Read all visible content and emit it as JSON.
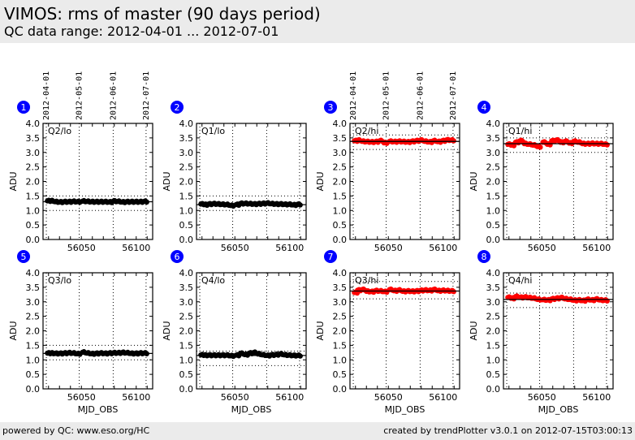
{
  "header": {
    "title": "VIMOS: rms of master (90 days period)",
    "subtitle": "QC data range: 2012-04-01 ... 2012-07-01"
  },
  "footer": {
    "left": "powered by QC: www.eso.org/HC",
    "right": "created by trendPlotter v3.0.1 on 2012-07-15T03:00:13"
  },
  "colors": {
    "lo": "#000000",
    "hi": "#ff0000",
    "badge": "#0000ff",
    "header_bg": "#ebebeb"
  },
  "chart_data": [
    {
      "type": "scatter",
      "panel": "1",
      "label": "Q2/lo",
      "color": "#000000",
      "xlabel": "",
      "ylabel": "ADU",
      "xlim": [
        56015,
        56115
      ],
      "ylim": [
        0,
        4
      ],
      "xticks": [
        "56050",
        "56100"
      ],
      "yticks": [
        "0.0",
        "0.5",
        "1.0",
        "1.5",
        "2.0",
        "2.5",
        "3.0",
        "3.5",
        "4.0"
      ],
      "top_dates": [
        "2012-04-01",
        "2012-05-01",
        "2012-06-01",
        "2012-07-01"
      ],
      "date_mjd": [
        56018,
        56048,
        56079,
        56109
      ],
      "mean": 1.3,
      "lower": 1.0,
      "upper": 1.5,
      "x": [
        56019,
        56022,
        56026,
        56030,
        56034,
        56038,
        56042,
        56046,
        56051,
        56055,
        56059,
        56063,
        56067,
        56071,
        56075,
        56079,
        56083,
        56087,
        56091,
        56095,
        56099,
        56103,
        56107
      ],
      "y": [
        1.33,
        1.33,
        1.3,
        1.29,
        1.3,
        1.3,
        1.31,
        1.3,
        1.32,
        1.31,
        1.3,
        1.3,
        1.3,
        1.3,
        1.29,
        1.32,
        1.31,
        1.29,
        1.3,
        1.3,
        1.3,
        1.3,
        1.31
      ]
    },
    {
      "type": "scatter",
      "panel": "2",
      "label": "Q1/lo",
      "color": "#000000",
      "xlabel": "",
      "ylabel": "ADU",
      "xlim": [
        56015,
        56115
      ],
      "ylim": [
        0,
        4
      ],
      "xticks": [
        "56050",
        "56100"
      ],
      "yticks": [
        "0.0",
        "0.5",
        "1.0",
        "1.5",
        "2.0",
        "2.5",
        "3.0",
        "3.5",
        "4.0"
      ],
      "top_dates": [],
      "date_mjd": [
        56018,
        56048,
        56079,
        56109
      ],
      "mean": 1.2,
      "lower": 1.0,
      "upper": 1.5,
      "x": [
        56019,
        56022,
        56026,
        56030,
        56034,
        56038,
        56042,
        56046,
        56051,
        56055,
        56059,
        56063,
        56067,
        56071,
        56075,
        56079,
        56083,
        56087,
        56091,
        56095,
        56099,
        56103,
        56107
      ],
      "y": [
        1.22,
        1.2,
        1.22,
        1.23,
        1.22,
        1.21,
        1.2,
        1.17,
        1.2,
        1.24,
        1.24,
        1.23,
        1.22,
        1.23,
        1.24,
        1.25,
        1.23,
        1.22,
        1.22,
        1.21,
        1.21,
        1.19,
        1.21
      ]
    },
    {
      "type": "scatter",
      "panel": "3",
      "label": "Q2/hi",
      "color": "#ff0000",
      "xlabel": "",
      "ylabel": "ADU",
      "xlim": [
        56015,
        56115
      ],
      "ylim": [
        0,
        4
      ],
      "xticks": [
        "56050",
        "56100"
      ],
      "yticks": [
        "0.0",
        "0.5",
        "1.0",
        "1.5",
        "2.0",
        "2.5",
        "3.0",
        "3.5",
        "4.0"
      ],
      "top_dates": [
        "2012-04-01",
        "2012-05-01",
        "2012-06-01",
        "2012-07-01"
      ],
      "date_mjd": [
        56018,
        56048,
        56079,
        56109
      ],
      "mean": 3.38,
      "lower": 3.1,
      "upper": 3.6,
      "x": [
        56019,
        56022,
        56026,
        56030,
        56034,
        56038,
        56042,
        56046,
        56051,
        56055,
        56059,
        56063,
        56067,
        56071,
        56075,
        56079,
        56083,
        56087,
        56091,
        56095,
        56099,
        56103,
        56107
      ],
      "y": [
        3.4,
        3.42,
        3.38,
        3.37,
        3.36,
        3.37,
        3.4,
        3.33,
        3.38,
        3.37,
        3.38,
        3.37,
        3.36,
        3.38,
        3.4,
        3.42,
        3.38,
        3.36,
        3.4,
        3.37,
        3.4,
        3.43,
        3.42
      ]
    },
    {
      "type": "scatter",
      "panel": "4",
      "label": "Q1/hi",
      "color": "#ff0000",
      "xlabel": "",
      "ylabel": "ADU",
      "xlim": [
        56015,
        56115
      ],
      "ylim": [
        0,
        4
      ],
      "xticks": [
        "56050",
        "56100"
      ],
      "yticks": [
        "0.0",
        "0.5",
        "1.0",
        "1.5",
        "2.0",
        "2.5",
        "3.0",
        "3.5",
        "4.0"
      ],
      "top_dates": [],
      "date_mjd": [
        56018,
        56048,
        56079,
        56109
      ],
      "mean": 3.3,
      "lower": 3.0,
      "upper": 3.5,
      "x": [
        56019,
        56022,
        56026,
        56030,
        56034,
        56038,
        56042,
        56046,
        56051,
        56055,
        56059,
        56063,
        56067,
        56071,
        56075,
        56079,
        56083,
        56087,
        56091,
        56095,
        56099,
        56103,
        56107
      ],
      "y": [
        3.28,
        3.25,
        3.35,
        3.4,
        3.3,
        3.28,
        3.25,
        3.2,
        3.35,
        3.28,
        3.4,
        3.42,
        3.35,
        3.38,
        3.32,
        3.38,
        3.35,
        3.3,
        3.3,
        3.31,
        3.3,
        3.3,
        3.28
      ]
    },
    {
      "type": "scatter",
      "panel": "5",
      "label": "Q3/lo",
      "color": "#000000",
      "xlabel": "MJD_OBS",
      "ylabel": "ADU",
      "xlim": [
        56015,
        56115
      ],
      "ylim": [
        0,
        4
      ],
      "xticks": [
        "56050",
        "56100"
      ],
      "yticks": [
        "0.0",
        "0.5",
        "1.0",
        "1.5",
        "2.0",
        "2.5",
        "3.0",
        "3.5",
        "4.0"
      ],
      "top_dates": [],
      "date_mjd": [
        56018,
        56048,
        56079,
        56109
      ],
      "mean": 1.22,
      "lower": 1.0,
      "upper": 1.5,
      "x": [
        56019,
        56022,
        56026,
        56030,
        56034,
        56038,
        56042,
        56046,
        56051,
        56055,
        56059,
        56063,
        56067,
        56071,
        56075,
        56079,
        56083,
        56087,
        56091,
        56095,
        56099,
        56103,
        56107
      ],
      "y": [
        1.23,
        1.23,
        1.22,
        1.22,
        1.23,
        1.24,
        1.23,
        1.21,
        1.26,
        1.23,
        1.21,
        1.22,
        1.23,
        1.22,
        1.23,
        1.24,
        1.24,
        1.25,
        1.24,
        1.22,
        1.22,
        1.23,
        1.23
      ]
    },
    {
      "type": "scatter",
      "panel": "6",
      "label": "Q4/lo",
      "color": "#000000",
      "xlabel": "MJD_OBS",
      "ylabel": "ADU",
      "xlim": [
        56015,
        56115
      ],
      "ylim": [
        0,
        4
      ],
      "xticks": [
        "56050",
        "56100"
      ],
      "yticks": [
        "0.0",
        "0.5",
        "1.0",
        "1.5",
        "2.0",
        "2.5",
        "3.0",
        "3.5",
        "4.0"
      ],
      "top_dates": [],
      "date_mjd": [
        56018,
        56048,
        56079,
        56109
      ],
      "mean": 1.15,
      "lower": 0.8,
      "upper": 1.3,
      "x": [
        56019,
        56022,
        56026,
        56030,
        56034,
        56038,
        56042,
        56046,
        56051,
        56055,
        56059,
        56063,
        56067,
        56071,
        56075,
        56079,
        56083,
        56087,
        56091,
        56095,
        56099,
        56103,
        56107
      ],
      "y": [
        1.17,
        1.16,
        1.16,
        1.16,
        1.16,
        1.16,
        1.16,
        1.14,
        1.16,
        1.22,
        1.18,
        1.23,
        1.25,
        1.2,
        1.17,
        1.15,
        1.17,
        1.18,
        1.2,
        1.17,
        1.16,
        1.15,
        1.15
      ]
    },
    {
      "type": "scatter",
      "panel": "7",
      "label": "Q3/hi",
      "color": "#ff0000",
      "xlabel": "MJD_OBS",
      "ylabel": "ADU",
      "xlim": [
        56015,
        56115
      ],
      "ylim": [
        0,
        4
      ],
      "xticks": [
        "56050",
        "56100"
      ],
      "yticks": [
        "0.0",
        "0.5",
        "1.0",
        "1.5",
        "2.0",
        "2.5",
        "3.0",
        "3.5",
        "4.0"
      ],
      "top_dates": [],
      "date_mjd": [
        56018,
        56048,
        56079,
        56109
      ],
      "mean": 3.37,
      "lower": 3.1,
      "upper": 3.7,
      "x": [
        56019,
        56022,
        56026,
        56030,
        56034,
        56038,
        56042,
        56046,
        56051,
        56055,
        56059,
        56063,
        56067,
        56071,
        56075,
        56079,
        56083,
        56087,
        56091,
        56095,
        56099,
        56103,
        56107
      ],
      "y": [
        3.32,
        3.4,
        3.42,
        3.36,
        3.35,
        3.38,
        3.37,
        3.35,
        3.42,
        3.38,
        3.4,
        3.36,
        3.37,
        3.36,
        3.37,
        3.39,
        3.4,
        3.39,
        3.42,
        3.38,
        3.39,
        3.38,
        3.37
      ]
    },
    {
      "type": "scatter",
      "panel": "8",
      "label": "Q4/hi",
      "color": "#ff0000",
      "xlabel": "MJD_OBS",
      "ylabel": "ADU",
      "xlim": [
        56015,
        56115
      ],
      "ylim": [
        0,
        4
      ],
      "xticks": [
        "56050",
        "56100"
      ],
      "yticks": [
        "0.0",
        "0.5",
        "1.0",
        "1.5",
        "2.0",
        "2.5",
        "3.0",
        "3.5",
        "4.0"
      ],
      "top_dates": [],
      "date_mjd": [
        56018,
        56048,
        56079,
        56109
      ],
      "mean": 3.08,
      "lower": 2.8,
      "upper": 3.3,
      "x": [
        56019,
        56022,
        56026,
        56030,
        56034,
        56038,
        56042,
        56046,
        56051,
        56055,
        56059,
        56063,
        56067,
        56071,
        56075,
        56079,
        56083,
        56087,
        56091,
        56095,
        56099,
        56103,
        56107
      ],
      "y": [
        3.15,
        3.12,
        3.18,
        3.15,
        3.16,
        3.14,
        3.12,
        3.08,
        3.07,
        3.06,
        3.1,
        3.12,
        3.14,
        3.1,
        3.08,
        3.05,
        3.06,
        3.04,
        3.08,
        3.06,
        3.09,
        3.06,
        3.05
      ]
    }
  ]
}
